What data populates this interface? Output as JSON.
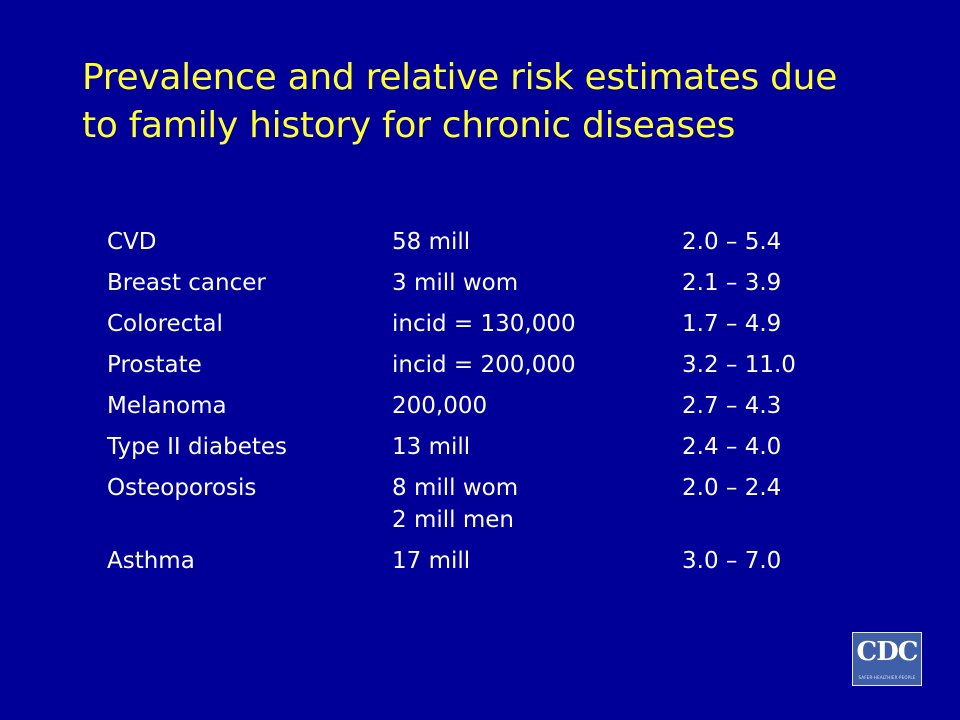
{
  "title": {
    "line1": "Prevalence and relative risk estimates due",
    "line2": "to family history for chronic diseases"
  },
  "rows": [
    {
      "disease": "CVD",
      "prevalence": [
        "58 mill"
      ],
      "risk": "2.0 – 5.4"
    },
    {
      "disease": "Breast cancer",
      "prevalence": [
        "3 mill wom"
      ],
      "risk": "2.1 – 3.9"
    },
    {
      "disease": "Colorectal",
      "prevalence": [
        "incid = 130,000"
      ],
      "risk": "1.7 – 4.9"
    },
    {
      "disease": "Prostate",
      "prevalence": [
        "incid = 200,000"
      ],
      "risk": "3.2 – 11.0"
    },
    {
      "disease": "Melanoma",
      "prevalence": [
        "200,000"
      ],
      "risk": "2.7 – 4.3"
    },
    {
      "disease": "Type II diabetes",
      "prevalence": [
        "13 mill"
      ],
      "risk": "2.4 – 4.0"
    },
    {
      "disease": "Osteoporosis",
      "prevalence": [
        "8 mill wom",
        "2 mill men"
      ],
      "risk": "2.0 – 2.4"
    },
    {
      "disease": "Asthma",
      "prevalence": [
        "17 mill"
      ],
      "risk": "3.0 – 7.0"
    }
  ],
  "logo": {
    "text": "CDC",
    "tagline": "SAFER·HEALTHIER·PEOPLE"
  },
  "colors": {
    "background": "#000099",
    "title": "#FFFF33",
    "body_text": "#FFFFFF",
    "logo_background": "#3F5FA8"
  }
}
